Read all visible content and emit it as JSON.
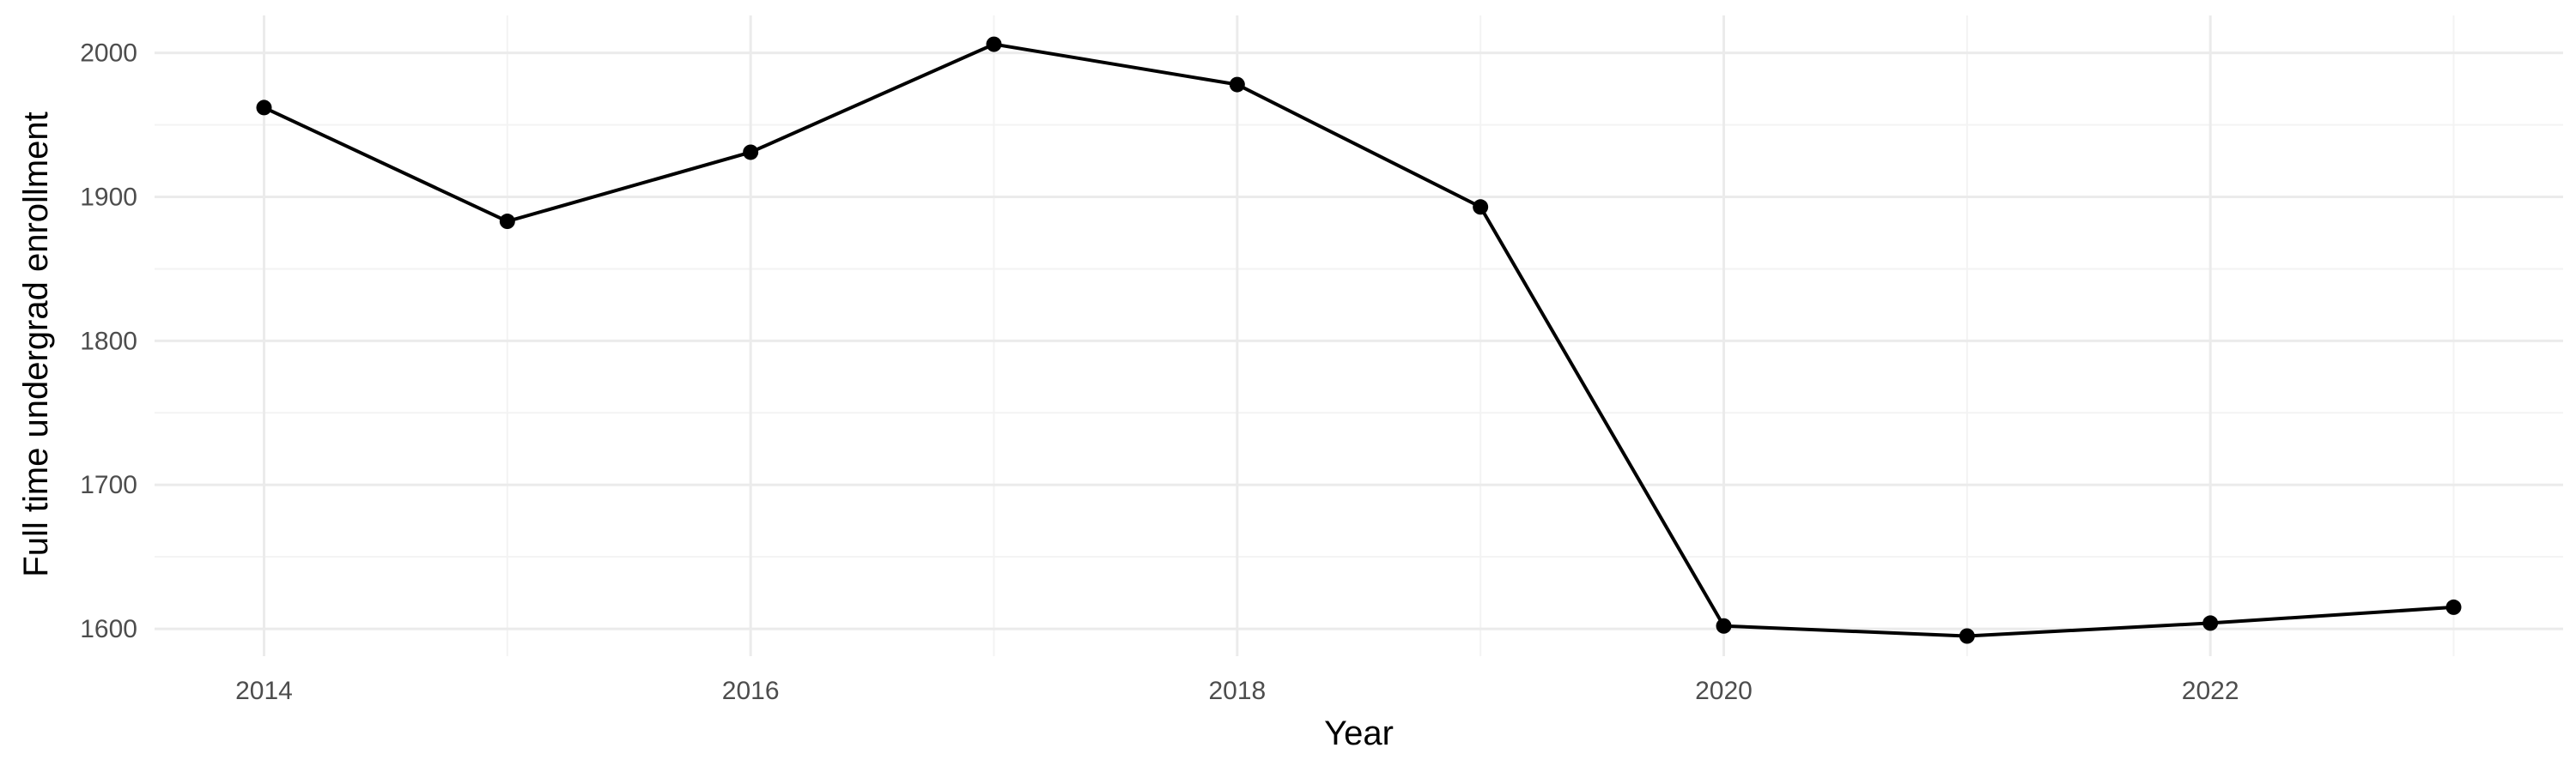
{
  "chart_data": {
    "type": "line",
    "title": "",
    "xlabel": "Year",
    "ylabel": "Full time undergrad enrollment",
    "x": [
      2014,
      2015,
      2016,
      2017,
      2018,
      2019,
      2020,
      2021,
      2022,
      2023
    ],
    "series": [
      {
        "values": [
          1962,
          1883,
          1931,
          2006,
          1978,
          1893,
          1602,
          1595,
          1604,
          1615
        ]
      }
    ],
    "xlim": [
      2013.55,
      2023.45
    ],
    "ylim": [
      1581,
      2026
    ],
    "x_ticks": [
      2014,
      2016,
      2018,
      2020,
      2022
    ],
    "y_ticks": [
      1600,
      1700,
      1800,
      1900,
      2000
    ],
    "x_tick_labels": [
      "2014",
      "2016",
      "2018",
      "2020",
      "2022"
    ],
    "y_tick_labels": [
      "1600",
      "1700",
      "1800",
      "1900",
      "2000"
    ],
    "grid": true,
    "line_color": "#000000",
    "grid_color": "#ebebeb"
  }
}
